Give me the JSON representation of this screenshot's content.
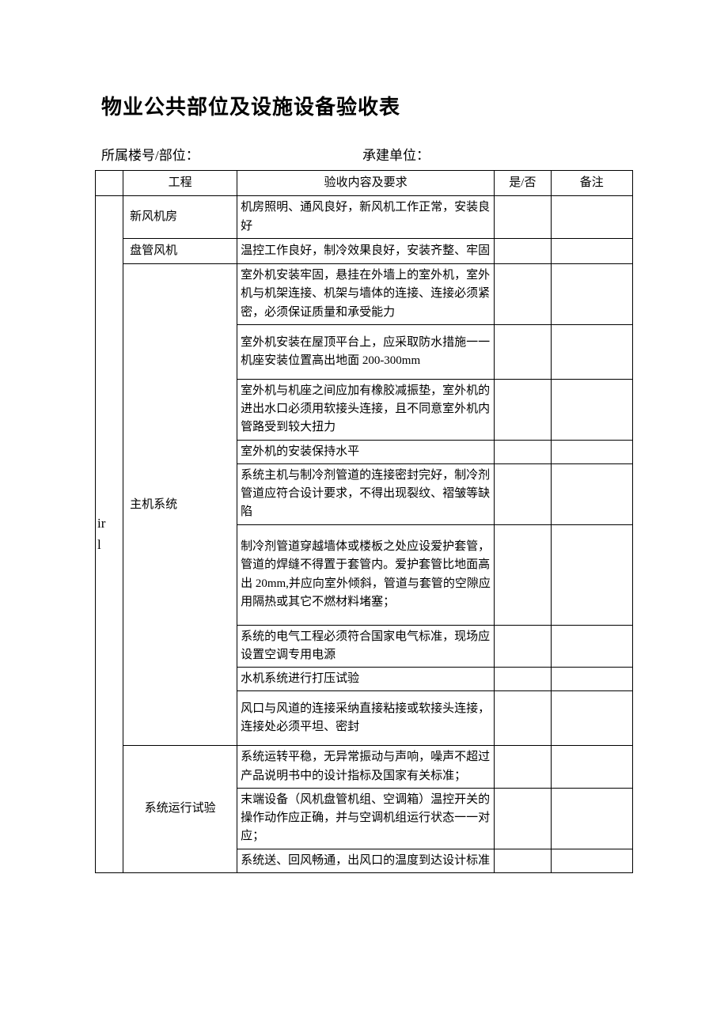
{
  "doc": {
    "title": "物业公共部位及设施设备验收表",
    "sub_left": "所属楼号/部位：",
    "sub_right": "承建单位：",
    "side_label_line1": "ir",
    "side_label_line2": "l",
    "headers": {
      "project": "工程",
      "content": "验收内容及要求",
      "yesno": "是/否",
      "remark": "备注"
    },
    "sections": [
      {
        "name": "新风机房",
        "items": [
          "机房照明、通风良好，新风机工作正常，安装良好"
        ]
      },
      {
        "name": "盘管风机",
        "items": [
          "温控工作良好，制冷效果良好，安装齐整、牢固"
        ]
      },
      {
        "name": "主机系统",
        "items": [
          "室外机安装牢固，悬挂在外墙上的室外机，室外机与机架连接、机架与墙体的连接、连接必须紧密，必须保证质量和承受能力",
          "室外机安装在屋顶平台上，应采取防水措施一一机座安装位置高出地面 200-300mm",
          "室外机与机座之间应加有橡胶减振垫，室外机的进出水口必须用软接头连接，且不同意室外机内管路受到较大扭力",
          "室外机的安装保持水平",
          "系统主机与制冷剂管道的连接密封完好，制冷剂管道应符合设计要求，不得出现裂纹、褶皱等缺陷",
          "制冷剂管道穿越墙体或楼板之处应设爱护套管，管道的焊缝不得置于套管内。爱护套管比地面高出 20mm,并应向室外倾斜，管道与套管的空隙应用隔热或其它不燃材料堵塞；",
          "系统的电气工程必须符合国家电气标准，现场应设置空调专用电源",
          "水机系统进行打压试验",
          "风口与风道的连接采纳直接粘接或软接头连接，连接处必须平坦、密封"
        ]
      },
      {
        "name": "系统运行试验",
        "items": [
          "系统运转平稳，无异常振动与声响，噪声不超过产品说明书中的设计指标及国家有关标准；",
          "末端设备（风机盘管机组、空调箱）温控开关的操作动作应正确，并与空调机组运行状态一一对应；",
          "系统送、回风畅通，出风口的温度到达设计标准"
        ]
      }
    ]
  }
}
